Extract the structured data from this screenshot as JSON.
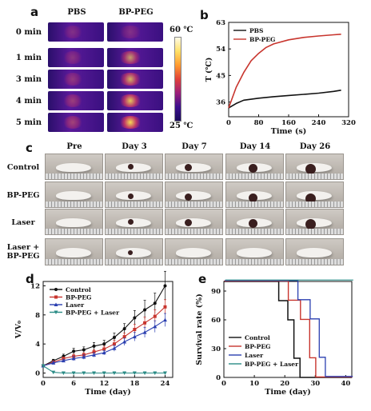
{
  "letters": {
    "a": "a",
    "b": "b",
    "c": "c",
    "d": "d",
    "e": "e"
  },
  "panel_a": {
    "columns": [
      "PBS",
      "BP-PEG"
    ],
    "times": [
      "0 min",
      "1 min",
      "3 min",
      "4 min",
      "5 min"
    ],
    "colorbar_max": "60 ℃",
    "colorbar_min": "25 ℃"
  },
  "panel_c": {
    "columns": [
      "Pre",
      "Day 3",
      "Day 7",
      "Day 14",
      "Day 26"
    ],
    "rows": [
      "Control",
      "BP-PEG",
      "Laser",
      "Laser + BP-PEG"
    ]
  },
  "colors": {
    "black": "#111111",
    "red": "#c8352e",
    "blue": "#2a3fb0",
    "teal": "#2a8c86"
  },
  "chart_data": [
    {
      "id": "b",
      "type": "line",
      "xlabel": "Time (s)",
      "ylabel": "T (℃)",
      "xlim": [
        0,
        320
      ],
      "ylim": [
        31,
        63
      ],
      "xticks": [
        0,
        80,
        160,
        240,
        320
      ],
      "yticks": [
        36,
        45,
        54,
        63
      ],
      "legend_position": "top-left",
      "series": [
        {
          "name": "PBS",
          "color": "#111111",
          "x": [
            0,
            20,
            40,
            80,
            120,
            160,
            200,
            240,
            280,
            300
          ],
          "y": [
            34,
            35.5,
            36.6,
            37.3,
            37.8,
            38.2,
            38.6,
            39.0,
            39.6,
            40.0
          ]
        },
        {
          "name": "BP-PEG",
          "color": "#c8352e",
          "x": [
            0,
            20,
            40,
            60,
            80,
            100,
            120,
            160,
            200,
            240,
            280,
            300
          ],
          "y": [
            34,
            41,
            46,
            50,
            52.5,
            54.5,
            55.7,
            57.1,
            57.9,
            58.4,
            58.8,
            59
          ]
        }
      ]
    },
    {
      "id": "d",
      "type": "line",
      "xlabel": "Time (day)",
      "ylabel": "V/V₀",
      "xlim": [
        0,
        25.5
      ],
      "ylim": [
        -0.6,
        12.6
      ],
      "xticks": [
        0,
        6,
        12,
        18,
        24
      ],
      "yticks": [
        0,
        4,
        8,
        12
      ],
      "legend_position": "top-left",
      "x": [
        0,
        2,
        4,
        6,
        8,
        10,
        12,
        14,
        16,
        18,
        20,
        22,
        24
      ],
      "series": [
        {
          "name": "Control",
          "color": "#111111",
          "marker": "circle",
          "values": [
            1,
            1.7,
            2.3,
            3,
            3.2,
            3.7,
            4,
            4.9,
            6.1,
            7.6,
            8.7,
            9.6,
            12
          ],
          "err": [
            0,
            0.2,
            0.3,
            0.4,
            0.4,
            0.5,
            0.5,
            0.6,
            0.7,
            1.0,
            1.3,
            1.4,
            2.0
          ]
        },
        {
          "name": "BP-PEG",
          "color": "#c8352e",
          "marker": "square",
          "values": [
            1,
            1.5,
            2,
            2.3,
            2.5,
            2.9,
            3.3,
            4,
            5,
            6,
            6.9,
            7.8,
            9.1
          ],
          "err": [
            0,
            0.2,
            0.2,
            0.3,
            0.3,
            0.3,
            0.4,
            0.5,
            0.5,
            0.7,
            0.8,
            0.9,
            1.0
          ]
        },
        {
          "name": "Laser",
          "color": "#2a3fb0",
          "marker": "triangle",
          "values": [
            1,
            1.4,
            1.7,
            2,
            2.2,
            2.5,
            2.8,
            3.4,
            4.3,
            5,
            5.6,
            6.4,
            7.3
          ],
          "err": [
            0,
            0.2,
            0.2,
            0.3,
            0.3,
            0.3,
            0.3,
            0.4,
            0.5,
            0.6,
            0.7,
            0.8,
            0.9
          ]
        },
        {
          "name": "BP-PEG + Laser",
          "color": "#2a8c86",
          "marker": "triangle-down",
          "values": [
            1,
            0.1,
            0,
            0,
            0,
            0,
            0,
            0,
            0,
            0,
            0,
            0,
            0
          ],
          "err": [
            0,
            0,
            0,
            0,
            0,
            0,
            0,
            0,
            0,
            0,
            0,
            0,
            0
          ]
        }
      ]
    },
    {
      "id": "e",
      "type": "line",
      "xlabel": "Time (day)",
      "ylabel": "Survival rate (%)",
      "xlim": [
        0,
        42
      ],
      "ylim": [
        0,
        100
      ],
      "xticks": [
        0,
        10,
        20,
        30,
        40
      ],
      "yticks": [
        0,
        30,
        60,
        90
      ],
      "legend_position": "bottom-left",
      "series": [
        {
          "name": "Control",
          "color": "#111111",
          "x": [
            0,
            18,
            18,
            21,
            21,
            23,
            23,
            25,
            25,
            42
          ],
          "y": [
            100,
            100,
            80,
            80,
            60,
            60,
            20,
            20,
            0,
            0
          ]
        },
        {
          "name": "BP-PEG",
          "color": "#c8352e",
          "x": [
            0,
            21,
            21,
            25,
            25,
            28,
            28,
            30,
            30,
            42
          ],
          "y": [
            100,
            100,
            80,
            80,
            60,
            60,
            20,
            20,
            0,
            0
          ]
        },
        {
          "name": "Laser",
          "color": "#2a3fb0",
          "x": [
            0,
            24,
            24,
            28,
            28,
            31,
            31,
            33,
            33,
            42
          ],
          "y": [
            100,
            100,
            80,
            80,
            60,
            60,
            20,
            20,
            0,
            0
          ]
        },
        {
          "name": "BP-PEG + Laser",
          "color": "#2a8c86",
          "x": [
            0,
            42
          ],
          "y": [
            100,
            100
          ]
        }
      ]
    }
  ]
}
